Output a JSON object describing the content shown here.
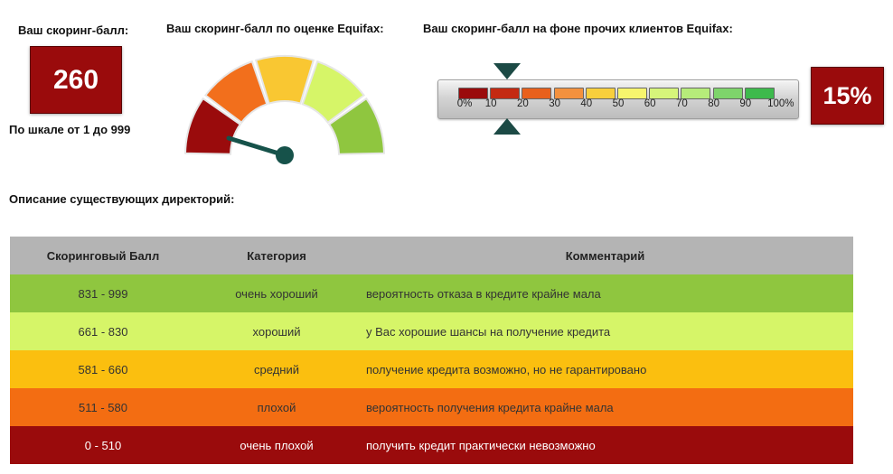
{
  "score": {
    "label": "Ваш скоринг-балл:",
    "value": "260",
    "range_text": "По шкале от 1 до 999"
  },
  "gauge": {
    "label": "Ваш скоринг-балл по оценке Equifax:",
    "segment_colors": [
      "#9a0b0c",
      "#f26f1c",
      "#f9c732",
      "#d6f568",
      "#8fc63f"
    ],
    "needle_color": "#16524a"
  },
  "comparison": {
    "label": "Ваш скоринг-балл на фоне прочих клиентов Equifax:",
    "percent": "15%",
    "marker_color": "#1c4a45",
    "scale_ticks": [
      "0%",
      "10",
      "20",
      "30",
      "40",
      "50",
      "60",
      "70",
      "80",
      "90",
      "100%"
    ],
    "segment_colors": [
      "#9a0b0c",
      "#c42a12",
      "#e8601c",
      "#f3913e",
      "#f8cf3c",
      "#f7f56d",
      "#d6f57a",
      "#b6ec7a",
      "#7ed46b",
      "#3dba4c"
    ]
  },
  "directory": {
    "label": "Описание существующих директорий:",
    "headers": [
      "Скоринговый Балл",
      "Категория",
      "Комментарий"
    ],
    "rows": [
      {
        "range": "831 - 999",
        "category": "очень хороший",
        "comment": "вероятность отказа в кредите крайне мала",
        "color": "#8fc63f",
        "dark": false
      },
      {
        "range": "661 - 830",
        "category": "хороший",
        "comment": "у Вас хорошие шансы на получение кредита",
        "color": "#d6f568",
        "dark": false
      },
      {
        "range": "581 - 660",
        "category": "средний",
        "comment": "получение кредита возможно, но не гарантировано",
        "color": "#fbbf0f",
        "dark": false
      },
      {
        "range": "511 - 580",
        "category": "плохой",
        "comment": "вероятность получения кредита крайне мала",
        "color": "#f36d12",
        "dark": false
      },
      {
        "range": "0 - 510",
        "category": "очень плохой",
        "comment": "получить кредит практически невозможно",
        "color": "#9a0b0c",
        "dark": true
      }
    ]
  }
}
